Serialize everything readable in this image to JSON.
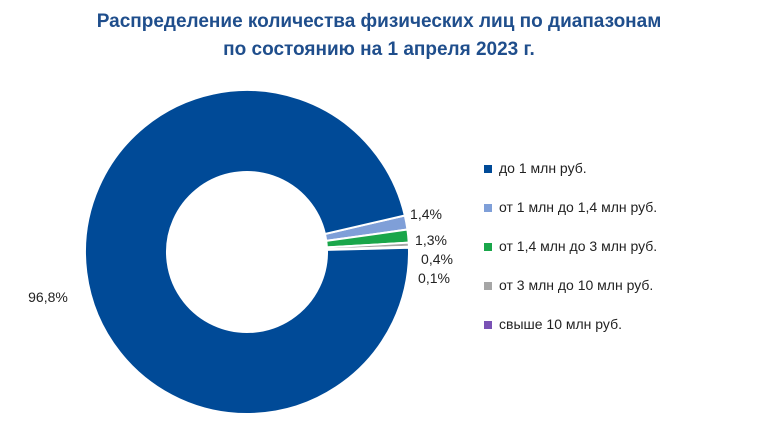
{
  "chart_data": {
    "type": "pie",
    "variant": "donut",
    "title_lines": [
      "Распределение количества физических лиц по диапазонам",
      "по состоянию на 1 апреля 2023 г."
    ],
    "legend_position": "right",
    "slices": [
      {
        "name": "до 1 млн руб.",
        "value": 96.8,
        "label": "96,8%",
        "color": "#004a97"
      },
      {
        "name": "от 1 млн до 1,4 млн руб.",
        "value": 1.4,
        "label": "1,4%",
        "color": "#7f9fd8"
      },
      {
        "name": "от 1,4 млн до 3 млн руб.",
        "value": 1.3,
        "label": "1,3%",
        "color": "#1aa64a"
      },
      {
        "name": "от 3 млн до 10 млн руб.",
        "value": 0.4,
        "label": "0,4%",
        "color": "#a6a6a6"
      },
      {
        "name": "свыше 10 млн руб.",
        "value": 0.1,
        "label": "0,1%",
        "color": "#7a52b5"
      }
    ]
  }
}
